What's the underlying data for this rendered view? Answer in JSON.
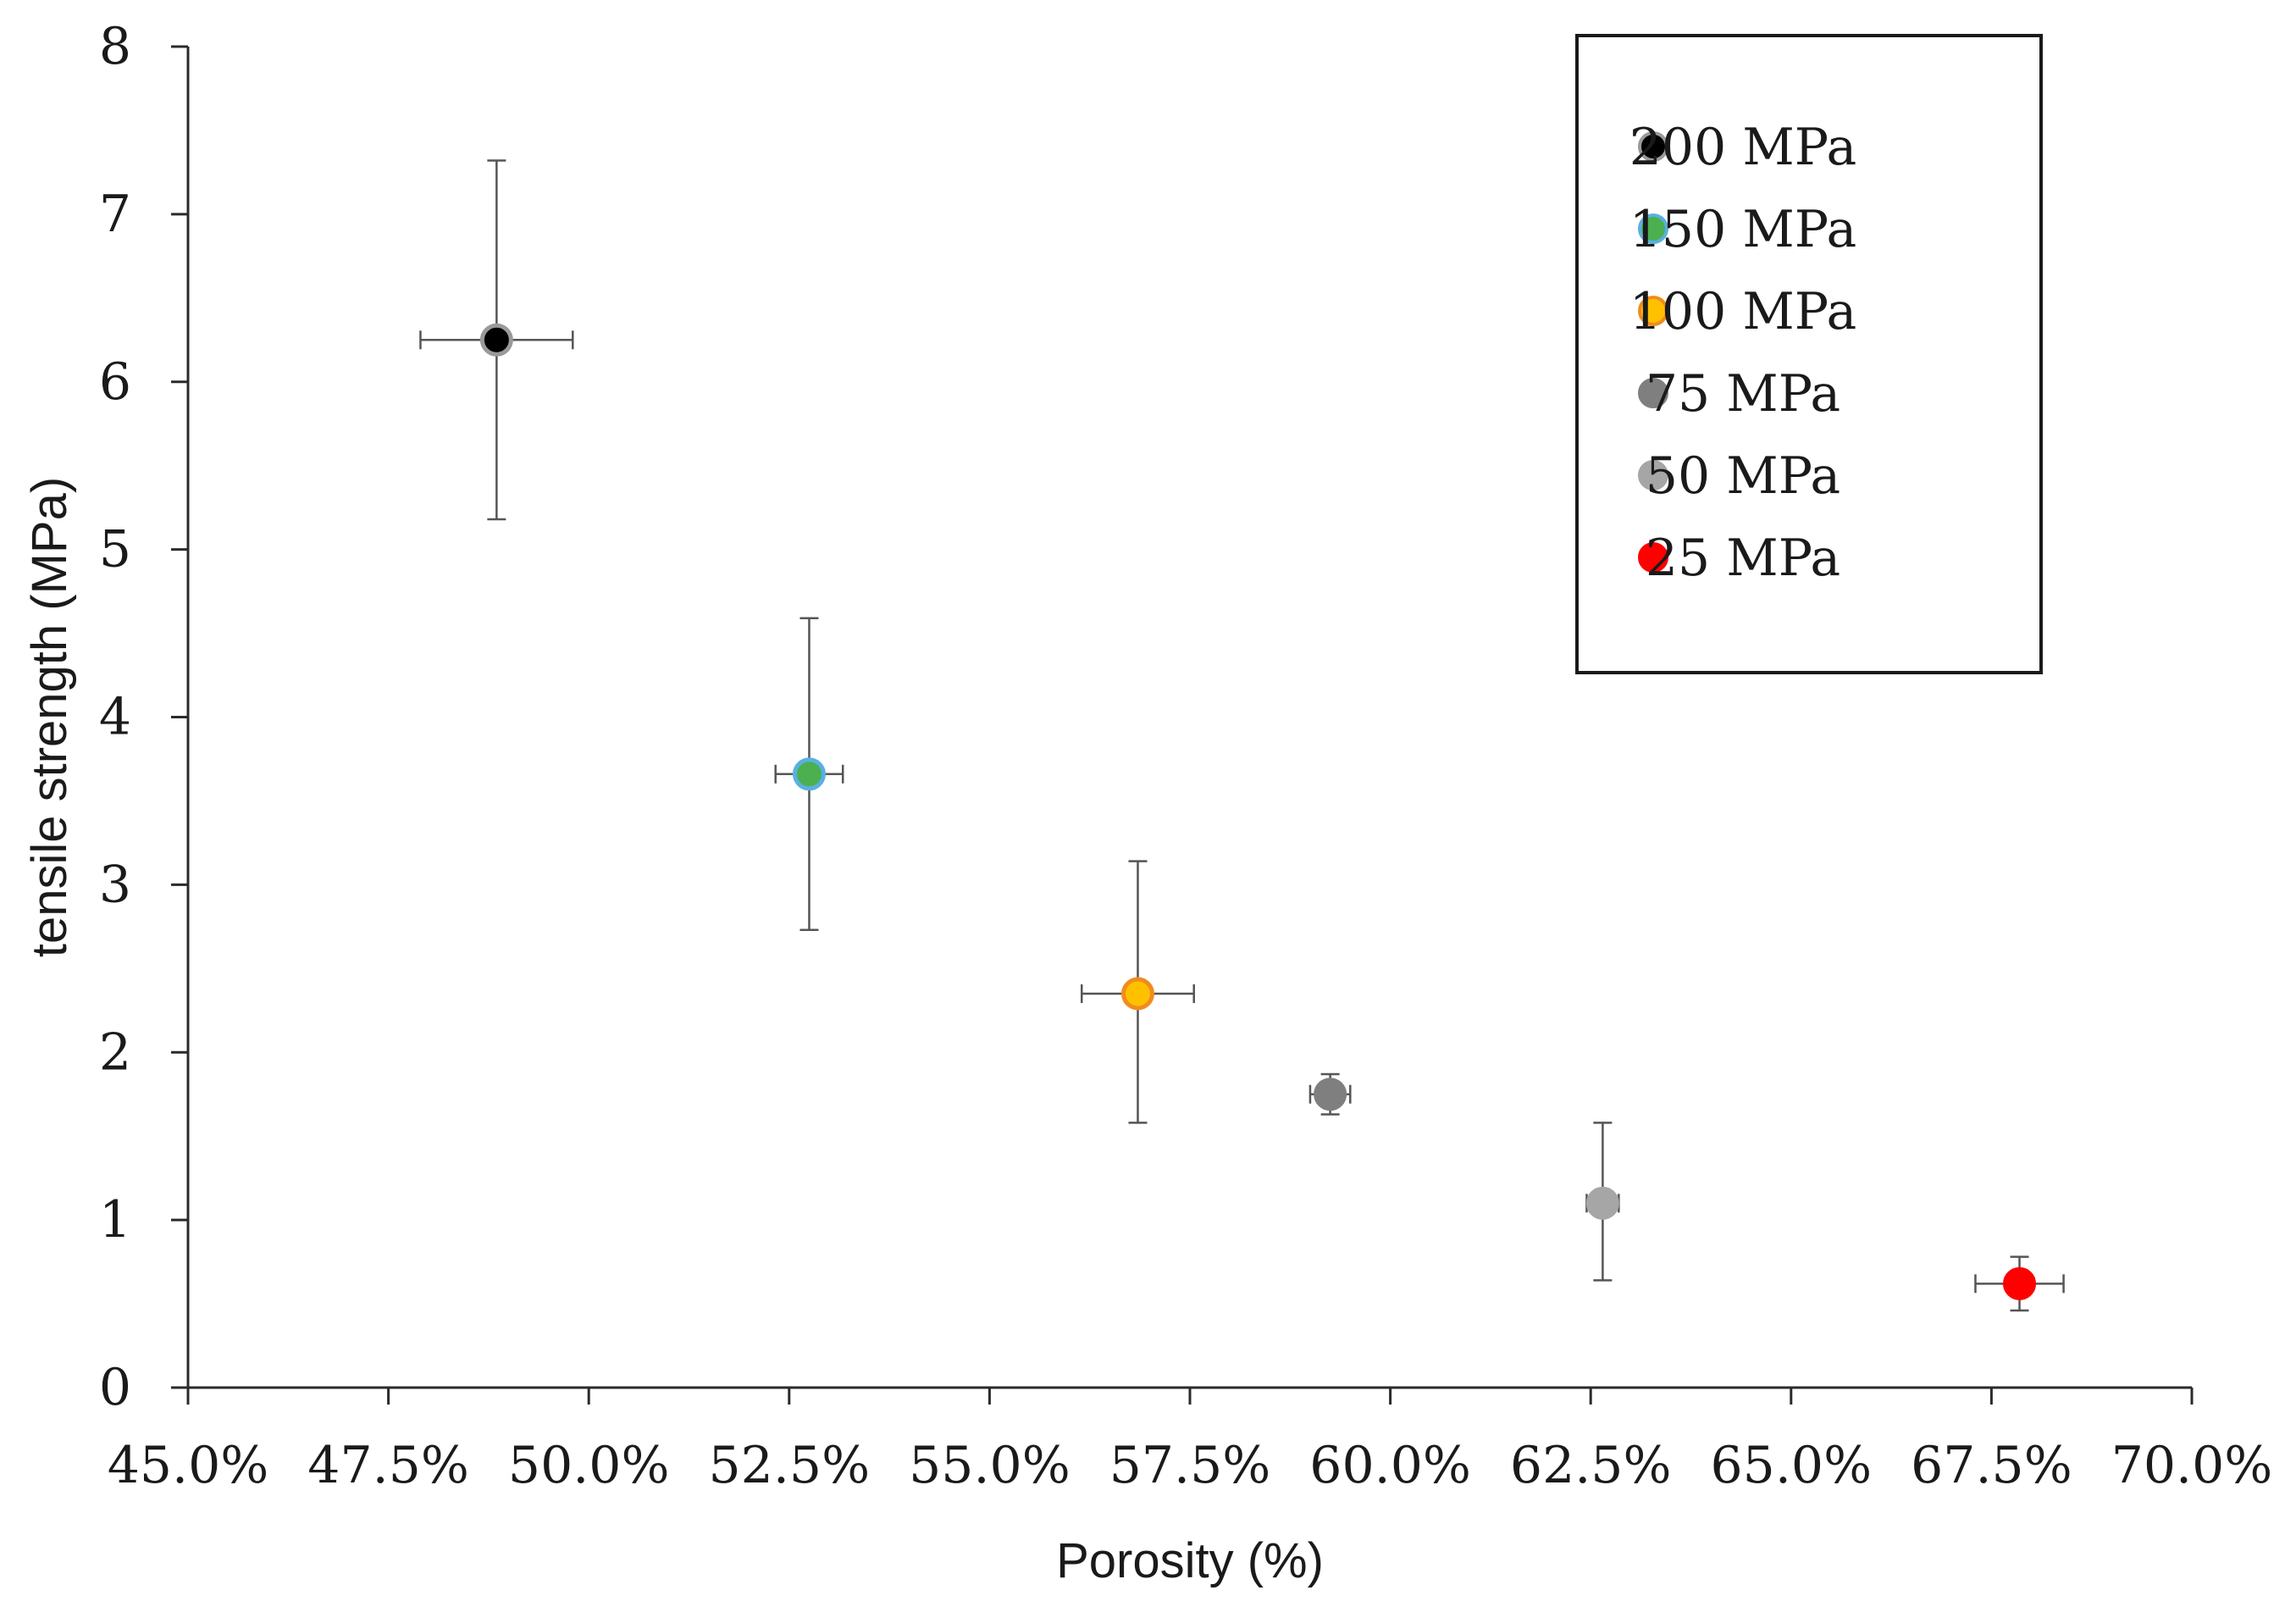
{
  "chart_data": {
    "type": "scatter",
    "title": "",
    "xlabel": "Porosity (%)",
    "ylabel": "tensile strength (MPa)",
    "xlim": [
      45.0,
      70.0
    ],
    "ylim": [
      0,
      8
    ],
    "x_ticks": [
      45.0,
      47.5,
      50.0,
      52.5,
      55.0,
      57.5,
      60.0,
      62.5,
      65.0,
      67.5,
      70.0
    ],
    "x_tick_labels": [
      "45.0%",
      "47.5%",
      "50.0%",
      "52.5%",
      "55.0%",
      "57.5%",
      "60.0%",
      "62.5%",
      "65.0%",
      "67.5%",
      "70.0%"
    ],
    "y_ticks": [
      0,
      1,
      2,
      3,
      4,
      5,
      6,
      7,
      8
    ],
    "y_tick_labels": [
      "0",
      "1",
      "2",
      "3",
      "4",
      "5",
      "6",
      "7",
      "8"
    ],
    "legend_position": "top-right",
    "series": [
      {
        "name": "200 MPa",
        "label": "200 MPa",
        "x": 48.85,
        "y": 6.25,
        "xerr": 0.95,
        "yerr_low": 1.07,
        "yerr_high": 1.07,
        "color": "#000000",
        "edge": "#9a9a9a"
      },
      {
        "name": "150 MPa",
        "label": "150 MPa",
        "x": 52.75,
        "y": 3.66,
        "xerr": 0.42,
        "yerr_low": 0.93,
        "yerr_high": 0.93,
        "color": "#4caf50",
        "edge": "#5ab0e0"
      },
      {
        "name": "100 MPa",
        "label": "100 MPa",
        "x": 56.85,
        "y": 2.35,
        "xerr": 0.7,
        "yerr_low": 0.77,
        "yerr_high": 0.79,
        "color": "#ffc000",
        "edge": "#f08c1e"
      },
      {
        "name": "75 MPa",
        "label": "75 MPa",
        "x": 59.25,
        "y": 1.75,
        "xerr": 0.25,
        "yerr_low": 0.12,
        "yerr_high": 0.12,
        "color": "#7f7f7f",
        "edge": "#7f7f7f"
      },
      {
        "name": "50 MPa",
        "label": "50 MPa",
        "x": 62.65,
        "y": 1.1,
        "xerr": 0.2,
        "yerr_low": 0.46,
        "yerr_high": 0.48,
        "color": "#a6a6a6",
        "edge": "#a6a6a6"
      },
      {
        "name": "25 MPa",
        "label": "25 MPa",
        "x": 67.85,
        "y": 0.62,
        "xerr": 0.55,
        "yerr_low": 0.16,
        "yerr_high": 0.16,
        "color": "#ff0000",
        "edge": "#ff0000"
      }
    ]
  }
}
